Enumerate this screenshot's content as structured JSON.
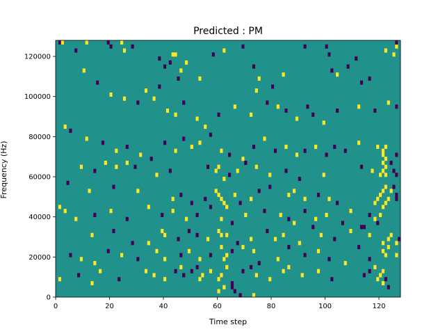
{
  "chart_data": {
    "type": "heatmap",
    "title": "Predicted : PM",
    "xlabel": "Time step",
    "ylabel": "Frequency (Hz)",
    "xlim": [
      0,
      128
    ],
    "ylim": [
      0,
      128000
    ],
    "x_ticks": [
      0,
      20,
      40,
      60,
      80,
      100,
      120
    ],
    "x_tick_labels": [
      "0",
      "20",
      "40",
      "60",
      "80",
      "100",
      "120"
    ],
    "y_ticks": [
      0,
      20000,
      40000,
      60000,
      80000,
      100000,
      120000
    ],
    "y_tick_labels": [
      "0",
      "20000",
      "40000",
      "60000",
      "80000",
      "100000",
      "120000"
    ],
    "grid": false,
    "colormap": "viridis",
    "colors": {
      "background": "#21918c",
      "high": "#fde725",
      "low": "#440154"
    },
    "background_value": 0,
    "cells_note_encoding": "each entry is [time_step, frequency_Hz_bin_start, value] with value 1 = high (yellow), -1 = low (purple); unlisted cells = 0",
    "bin_height_hz": 2000,
    "cells": [
      [
        1,
        126000,
        -1
      ],
      [
        2,
        126000,
        1
      ],
      [
        7,
        122000,
        -1
      ],
      [
        11,
        126000,
        1
      ],
      [
        19,
        126000,
        -1
      ],
      [
        20,
        124000,
        -1
      ],
      [
        24,
        126000,
        1
      ],
      [
        25,
        122000,
        1
      ],
      [
        28,
        124000,
        -1
      ],
      [
        38,
        118000,
        -1
      ],
      [
        40,
        114000,
        -1
      ],
      [
        42,
        116000,
        -1
      ],
      [
        43,
        120000,
        1
      ],
      [
        44,
        120000,
        1
      ],
      [
        45,
        108000,
        -1
      ],
      [
        46,
        112000,
        1
      ],
      [
        48,
        116000,
        1
      ],
      [
        53,
        108000,
        1
      ],
      [
        58,
        120000,
        -1
      ],
      [
        62,
        122000,
        1
      ],
      [
        69,
        124000,
        -1
      ],
      [
        73,
        114000,
        -1
      ],
      [
        74,
        102000,
        1
      ],
      [
        75,
        108000,
        1
      ],
      [
        80,
        104000,
        -1
      ],
      [
        84,
        110000,
        1
      ],
      [
        92,
        124000,
        -1
      ],
      [
        100,
        124000,
        -1
      ],
      [
        101,
        120000,
        -1
      ],
      [
        102,
        112000,
        -1
      ],
      [
        104,
        110000,
        1
      ],
      [
        108,
        114000,
        -1
      ],
      [
        111,
        118000,
        -1
      ],
      [
        113,
        106000,
        -1
      ],
      [
        116,
        108000,
        -1
      ],
      [
        122,
        122000,
        1
      ],
      [
        125,
        120000,
        1
      ],
      [
        126,
        124000,
        1
      ],
      [
        126,
        126000,
        -1
      ],
      [
        10,
        112000,
        1
      ],
      [
        15,
        106000,
        -1
      ],
      [
        20,
        100000,
        1
      ],
      [
        25,
        98000,
        1
      ],
      [
        30,
        96000,
        -1
      ],
      [
        33,
        102000,
        1
      ],
      [
        36,
        98000,
        1
      ],
      [
        38,
        104000,
        -1
      ],
      [
        41,
        92000,
        1
      ],
      [
        44,
        90000,
        1
      ],
      [
        47,
        96000,
        -1
      ],
      [
        52,
        88000,
        1
      ],
      [
        55,
        84000,
        1
      ],
      [
        60,
        90000,
        -1
      ],
      [
        66,
        94000,
        1
      ],
      [
        72,
        90000,
        1
      ],
      [
        78,
        96000,
        -1
      ],
      [
        82,
        94000,
        1
      ],
      [
        85,
        92000,
        -1
      ],
      [
        89,
        88000,
        1
      ],
      [
        93,
        94000,
        -1
      ],
      [
        95,
        90000,
        -1
      ],
      [
        99,
        86000,
        1
      ],
      [
        104,
        92000,
        -1
      ],
      [
        112,
        94000,
        1
      ],
      [
        118,
        92000,
        -1
      ],
      [
        123,
        96000,
        1
      ],
      [
        126,
        94000,
        -1
      ],
      [
        3,
        84000,
        1
      ],
      [
        5,
        82000,
        -1
      ],
      [
        11,
        78000,
        1
      ],
      [
        17,
        76000,
        -1
      ],
      [
        22,
        72000,
        1
      ],
      [
        26,
        74000,
        -1
      ],
      [
        31,
        70000,
        1
      ],
      [
        35,
        68000,
        -1
      ],
      [
        40,
        76000,
        -1
      ],
      [
        44,
        72000,
        1
      ],
      [
        47,
        78000,
        -1
      ],
      [
        50,
        74000,
        1
      ],
      [
        53,
        76000,
        1
      ],
      [
        57,
        80000,
        -1
      ],
      [
        61,
        72000,
        1
      ],
      [
        64,
        70000,
        -1
      ],
      [
        69,
        68000,
        1
      ],
      [
        73,
        74000,
        -1
      ],
      [
        77,
        78000,
        1
      ],
      [
        81,
        72000,
        -1
      ],
      [
        85,
        74000,
        1
      ],
      [
        89,
        70000,
        1
      ],
      [
        92,
        72000,
        -1
      ],
      [
        96,
        74000,
        1
      ],
      [
        100,
        70000,
        -1
      ],
      [
        103,
        74000,
        -1
      ],
      [
        107,
        72000,
        -1
      ],
      [
        112,
        76000,
        1
      ],
      [
        119,
        74000,
        1
      ],
      [
        121,
        72000,
        1
      ],
      [
        122,
        74000,
        1
      ],
      [
        121,
        70000,
        1
      ],
      [
        122,
        68000,
        1
      ],
      [
        121,
        66000,
        1
      ],
      [
        122,
        64000,
        1
      ],
      [
        121,
        62000,
        1
      ],
      [
        122,
        60000,
        1
      ],
      [
        126,
        70000,
        -1
      ],
      [
        9,
        64000,
        1
      ],
      [
        14,
        62000,
        -1
      ],
      [
        18,
        66000,
        1
      ],
      [
        22,
        64000,
        1
      ],
      [
        26,
        66000,
        1
      ],
      [
        29,
        64000,
        -1
      ],
      [
        37,
        60000,
        1
      ],
      [
        42,
        62000,
        -1
      ],
      [
        56,
        64000,
        -1
      ],
      [
        59,
        62000,
        1
      ],
      [
        60,
        64000,
        1
      ],
      [
        62,
        58000,
        1
      ],
      [
        64,
        60000,
        -1
      ],
      [
        67,
        62000,
        1
      ],
      [
        70,
        66000,
        -1
      ],
      [
        74,
        64000,
        1
      ],
      [
        79,
        60000,
        1
      ],
      [
        85,
        62000,
        -1
      ],
      [
        90,
        58000,
        -1
      ],
      [
        99,
        60000,
        1
      ],
      [
        113,
        64000,
        -1
      ],
      [
        117,
        62000,
        1
      ],
      [
        120,
        60000,
        1
      ],
      [
        124,
        66000,
        -1
      ],
      [
        125,
        62000,
        -1
      ],
      [
        126,
        60000,
        -1
      ],
      [
        4,
        56000,
        -1
      ],
      [
        12,
        52000,
        1
      ],
      [
        21,
        54000,
        -1
      ],
      [
        30,
        52000,
        1
      ],
      [
        43,
        48000,
        1
      ],
      [
        46,
        50000,
        -1
      ],
      [
        50,
        46000,
        -1
      ],
      [
        55,
        48000,
        -1
      ],
      [
        59,
        52000,
        1
      ],
      [
        60,
        50000,
        1
      ],
      [
        61,
        48000,
        1
      ],
      [
        62,
        46000,
        1
      ],
      [
        63,
        44000,
        1
      ],
      [
        66,
        50000,
        1
      ],
      [
        68,
        46000,
        -1
      ],
      [
        72,
        48000,
        1
      ],
      [
        75,
        52000,
        -1
      ],
      [
        79,
        54000,
        -1
      ],
      [
        86,
        50000,
        1
      ],
      [
        88,
        52000,
        1
      ],
      [
        92,
        48000,
        1
      ],
      [
        97,
        50000,
        -1
      ],
      [
        101,
        48000,
        1
      ],
      [
        104,
        46000,
        -1
      ],
      [
        118,
        46000,
        1
      ],
      [
        119,
        48000,
        1
      ],
      [
        120,
        50000,
        1
      ],
      [
        121,
        52000,
        1
      ],
      [
        122,
        54000,
        1
      ],
      [
        123,
        48000,
        1
      ],
      [
        124,
        52000,
        1
      ],
      [
        125,
        54000,
        -1
      ],
      [
        126,
        50000,
        -1
      ],
      [
        126,
        48000,
        -1
      ],
      [
        1,
        44000,
        1
      ],
      [
        3,
        42000,
        1
      ],
      [
        7,
        38000,
        1
      ],
      [
        14,
        40000,
        -1
      ],
      [
        20,
        42000,
        1
      ],
      [
        26,
        38000,
        -1
      ],
      [
        34,
        44000,
        1
      ],
      [
        39,
        40000,
        -1
      ],
      [
        43,
        42000,
        1
      ],
      [
        48,
        38000,
        1
      ],
      [
        52,
        40000,
        -1
      ],
      [
        57,
        44000,
        -1
      ],
      [
        61,
        38000,
        1
      ],
      [
        65,
        36000,
        -1
      ],
      [
        70,
        40000,
        1
      ],
      [
        77,
        42000,
        -1
      ],
      [
        83,
        40000,
        1
      ],
      [
        86,
        38000,
        -1
      ],
      [
        88,
        36000,
        1
      ],
      [
        92,
        42000,
        -1
      ],
      [
        96,
        38000,
        1
      ],
      [
        100,
        40000,
        1
      ],
      [
        106,
        36000,
        -1
      ],
      [
        109,
        42000,
        1
      ],
      [
        116,
        40000,
        -1
      ],
      [
        118,
        38000,
        1
      ],
      [
        120,
        40000,
        1
      ],
      [
        121,
        44000,
        1
      ],
      [
        122,
        46000,
        1
      ],
      [
        119,
        36000,
        -1
      ],
      [
        114,
        34000,
        -1
      ],
      [
        13,
        30000,
        1
      ],
      [
        21,
        32000,
        -1
      ],
      [
        28,
        26000,
        -1
      ],
      [
        34,
        26000,
        1
      ],
      [
        39,
        32000,
        1
      ],
      [
        40,
        30000,
        1
      ],
      [
        45,
        28000,
        -1
      ],
      [
        49,
        32000,
        -1
      ],
      [
        52,
        30000,
        -1
      ],
      [
        56,
        28000,
        1
      ],
      [
        60,
        32000,
        1
      ],
      [
        61,
        30000,
        1
      ],
      [
        63,
        30000,
        1
      ],
      [
        67,
        26000,
        -1
      ],
      [
        72,
        28000,
        1
      ],
      [
        78,
        32000,
        -1
      ],
      [
        81,
        28000,
        1
      ],
      [
        84,
        30000,
        1
      ],
      [
        90,
        26000,
        1
      ],
      [
        95,
        34000,
        -1
      ],
      [
        98,
        30000,
        1
      ],
      [
        103,
        28000,
        -1
      ],
      [
        109,
        32000,
        1
      ],
      [
        113,
        34000,
        -1
      ],
      [
        116,
        30000,
        1
      ],
      [
        121,
        26000,
        1
      ],
      [
        123,
        28000,
        1
      ],
      [
        124,
        30000,
        1
      ],
      [
        126,
        26000,
        1
      ],
      [
        127,
        28000,
        -1
      ],
      [
        5,
        20000,
        -1
      ],
      [
        9,
        18000,
        1
      ],
      [
        14,
        16000,
        1
      ],
      [
        19,
        22000,
        -1
      ],
      [
        24,
        20000,
        1
      ],
      [
        30,
        18000,
        -1
      ],
      [
        37,
        22000,
        1
      ],
      [
        40,
        18000,
        1
      ],
      [
        46,
        20000,
        -1
      ],
      [
        49,
        22000,
        1
      ],
      [
        53,
        18000,
        1
      ],
      [
        57,
        20000,
        -1
      ],
      [
        61,
        24000,
        1
      ],
      [
        62,
        18000,
        1
      ],
      [
        63,
        20000,
        1
      ],
      [
        65,
        22000,
        -1
      ],
      [
        69,
        24000,
        1
      ],
      [
        73,
        22000,
        1
      ],
      [
        75,
        16000,
        -1
      ],
      [
        82,
        18000,
        1
      ],
      [
        86,
        24000,
        -1
      ],
      [
        92,
        20000,
        -1
      ],
      [
        97,
        22000,
        1
      ],
      [
        101,
        18000,
        -1
      ],
      [
        107,
        16000,
        1
      ],
      [
        112,
        24000,
        -1
      ],
      [
        116,
        18000,
        -1
      ],
      [
        121,
        22000,
        1
      ],
      [
        122,
        20000,
        1
      ],
      [
        123,
        24000,
        1
      ],
      [
        126,
        20000,
        1
      ],
      [
        1,
        8000,
        1
      ],
      [
        8,
        10000,
        -1
      ],
      [
        13,
        6000,
        1
      ],
      [
        16,
        12000,
        1
      ],
      [
        23,
        8000,
        -1
      ],
      [
        33,
        12000,
        1
      ],
      [
        36,
        10000,
        1
      ],
      [
        40,
        8000,
        1
      ],
      [
        44,
        12000,
        -1
      ],
      [
        46,
        14000,
        1
      ],
      [
        47,
        10000,
        -1
      ],
      [
        50,
        12000,
        -1
      ],
      [
        52,
        14000,
        -1
      ],
      [
        53,
        8000,
        1
      ],
      [
        54,
        10000,
        1
      ],
      [
        57,
        12000,
        1
      ],
      [
        60,
        8000,
        1
      ],
      [
        61,
        10000,
        1
      ],
      [
        63,
        14000,
        1
      ],
      [
        65,
        6000,
        -1
      ],
      [
        69,
        12000,
        -1
      ],
      [
        72,
        14000,
        -1
      ],
      [
        74,
        10000,
        1
      ],
      [
        79,
        8000,
        1
      ],
      [
        84,
        12000,
        1
      ],
      [
        86,
        14000,
        1
      ],
      [
        91,
        10000,
        1
      ],
      [
        97,
        12000,
        1
      ],
      [
        102,
        8000,
        -1
      ],
      [
        114,
        10000,
        -1
      ],
      [
        116,
        12000,
        -1
      ],
      [
        118,
        14000,
        1
      ],
      [
        119,
        8000,
        1
      ],
      [
        120,
        10000,
        1
      ],
      [
        121,
        12000,
        1
      ],
      [
        121,
        6000,
        1
      ],
      [
        122,
        8000,
        -1
      ],
      [
        123,
        4000,
        -1
      ],
      [
        62,
        4000,
        1
      ],
      [
        66,
        2000,
        -1
      ],
      [
        68,
        0,
        -1
      ],
      [
        73,
        0,
        1
      ],
      [
        60,
        2000,
        1
      ],
      [
        65,
        4000,
        -1
      ]
    ]
  }
}
